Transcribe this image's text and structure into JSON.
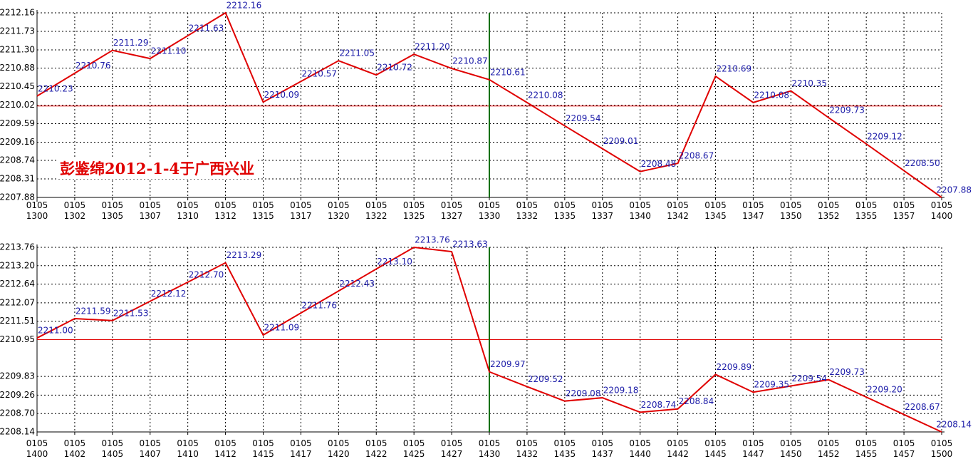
{
  "chart_data": [
    {
      "type": "line",
      "color": "#e00000",
      "label_color": "#1c1ca8",
      "grid": true,
      "hline": 2210.0,
      "hline_color": "#e00000",
      "vline": "0105\n1330",
      "vline_color": "#007000",
      "annotation": "彭鉴绵2012-1-4于广西兴业",
      "categories": [
        "0105\n1300",
        "0105\n1302",
        "0105\n1305",
        "0105\n1307",
        "0105\n1310",
        "0105\n1312",
        "0105\n1315",
        "0105\n1317",
        "0105\n1320",
        "0105\n1322",
        "0105\n1325",
        "0105\n1327",
        "0105\n1330",
        "0105\n1332",
        "0105\n1335",
        "0105\n1337",
        "0105\n1340",
        "0105\n1342",
        "0105\n1345",
        "0105\n1347",
        "0105\n1350",
        "0105\n1352",
        "0105\n1355",
        "0105\n1357",
        "0105\n1400"
      ],
      "values": [
        2210.23,
        2210.76,
        2211.29,
        2211.1,
        2211.63,
        2212.16,
        2210.09,
        2210.57,
        2211.05,
        2210.72,
        2211.2,
        2210.87,
        2210.61,
        2210.08,
        2209.54,
        2209.01,
        2208.48,
        2208.67,
        2210.69,
        2210.08,
        2210.35,
        2209.73,
        2209.12,
        2208.5,
        2207.88
      ],
      "value_labels": [
        "2210.23",
        "2210.76",
        "2211.29",
        "2211.10",
        "2211.63",
        "2212.16",
        "2210.09",
        "2210.57",
        "2211.05",
        "2210.72",
        "2211.20",
        "2210.87",
        "2210.61",
        "2210.08",
        "2209.54",
        "2209.01",
        "2208.48",
        "2208.67",
        "2210.69",
        "2210.08",
        "2210.35",
        "2209.73",
        "2209.12",
        "2208.50",
        "2207.88"
      ],
      "ylim": [
        2207.88,
        2212.16
      ],
      "yticks": [
        2207.88,
        2208.31,
        2208.74,
        2209.16,
        2209.59,
        2210.02,
        2210.45,
        2210.88,
        {
          "value": 2211.3,
          "label": "2211.30"
        },
        2211.73,
        2212.16
      ]
    },
    {
      "type": "line",
      "color": "#e00000",
      "label_color": "#1c1ca8",
      "grid": true,
      "hline": 2210.95,
      "hline_color": "#e00000",
      "vline": "0105\n1430",
      "vline_color": "#007000",
      "categories": [
        "0105\n1400",
        "0105\n1402",
        "0105\n1405",
        "0105\n1407",
        "0105\n1410",
        "0105\n1412",
        "0105\n1415",
        "0105\n1417",
        "0105\n1420",
        "0105\n1422",
        "0105\n1425",
        "0105\n1427",
        "0105\n1430",
        "0105\n1432",
        "0105\n1435",
        "0105\n1437",
        "0105\n1440",
        "0105\n1442",
        "0105\n1445",
        "0105\n1447",
        "0105\n1450",
        "0105\n1452",
        "0105\n1455",
        "0105\n1457",
        "0105\n1500"
      ],
      "values": [
        2211.0,
        2211.59,
        2211.53,
        2212.12,
        2212.7,
        2213.29,
        2211.09,
        2211.76,
        2212.43,
        2213.1,
        2213.76,
        2213.63,
        2209.97,
        2209.52,
        2209.08,
        2209.18,
        2208.74,
        2208.84,
        2209.89,
        2209.35,
        2209.54,
        2209.73,
        2209.2,
        2208.67,
        2208.14
      ],
      "value_labels": [
        "2211.00",
        "2211.59",
        "2211.53",
        "2212.12",
        "2212.70",
        "2213.29",
        "2211.09",
        "2211.76",
        "2212.43",
        "2213.10",
        "2213.76",
        "2213.63",
        "2209.97",
        "2209.52",
        "2209.08",
        "2209.18",
        "2208.74",
        "2208.84",
        "2209.89",
        "2209.35",
        "2209.54",
        "2209.73",
        "2209.20",
        "2208.67",
        "2208.14"
      ],
      "ylim": [
        2208.14,
        2213.76
      ],
      "yticks": [
        2208.14,
        {
          "value": 2208.7,
          "label": "2208.70"
        },
        2209.26,
        2209.83,
        2210.95,
        2211.51,
        2212.07,
        2212.64,
        {
          "value": 2213.2,
          "label": "2213.20"
        },
        2213.76
      ]
    }
  ]
}
